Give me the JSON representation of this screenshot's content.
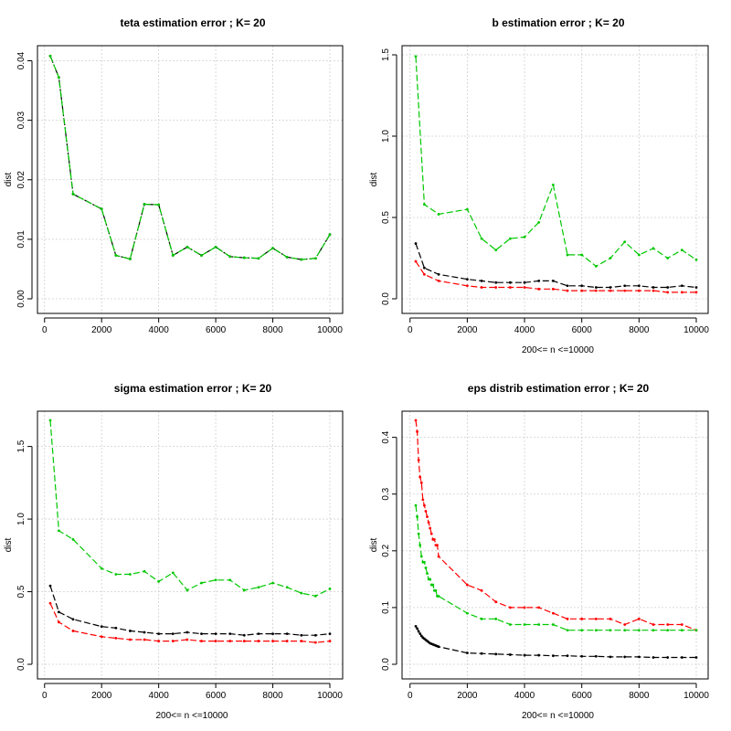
{
  "colors": {
    "black": "#000000",
    "red": "#ff0000",
    "green": "#00c800",
    "grid": "#cfcfcf"
  },
  "chart_data": [
    {
      "type": "line",
      "title": "teta estimation error ; K= 20",
      "xlabel": "",
      "ylabel": "dist",
      "xlim": [
        200,
        10000
      ],
      "ylim": [
        0,
        0.041
      ],
      "xticks": [
        0,
        2000,
        4000,
        6000,
        8000,
        10000
      ],
      "yticks": [
        0.0,
        0.01,
        0.02,
        0.03,
        0.04
      ],
      "ytick_labels": [
        "0.00",
        "0.01",
        "0.02",
        "0.03",
        "0.04"
      ],
      "series": [
        {
          "name": "black",
          "color": "#000000",
          "x": [
            200,
            500,
            1000,
            2000,
            2500,
            3000,
            3500,
            4000,
            4500,
            5000,
            5500,
            6000,
            6500,
            7000,
            7500,
            8000,
            8500,
            9000,
            9500,
            10000
          ],
          "y": [
            0.0408,
            0.0372,
            0.0176,
            0.0151,
            0.0073,
            0.0067,
            0.0159,
            0.0158,
            0.0073,
            0.0087,
            0.0073,
            0.0087,
            0.0071,
            0.0069,
            0.0068,
            0.0085,
            0.007,
            0.0066,
            0.0068,
            0.0108
          ]
        },
        {
          "name": "green",
          "color": "#00c800",
          "x": [
            200,
            500,
            1000,
            2000,
            2500,
            3000,
            3500,
            4000,
            4500,
            5000,
            5500,
            6000,
            6500,
            7000,
            7500,
            8000,
            8500,
            9000,
            9500,
            10000
          ],
          "y": [
            0.0408,
            0.0372,
            0.0176,
            0.0151,
            0.0073,
            0.0067,
            0.0159,
            0.0158,
            0.0073,
            0.0087,
            0.0073,
            0.0087,
            0.0071,
            0.0069,
            0.0068,
            0.0085,
            0.007,
            0.0066,
            0.0068,
            0.0108
          ]
        }
      ]
    },
    {
      "type": "line",
      "title": "b  estimation error ; K= 20",
      "xlabel": "200<= n <=10000",
      "ylabel": "dist",
      "xlim": [
        200,
        10000
      ],
      "ylim": [
        0,
        1.5
      ],
      "xticks": [
        0,
        2000,
        4000,
        6000,
        8000,
        10000
      ],
      "yticks": [
        0.0,
        0.5,
        1.0,
        1.5
      ],
      "ytick_labels": [
        "0.0",
        "0.5",
        "1.0",
        "1.5"
      ],
      "series": [
        {
          "name": "green",
          "color": "#00c800",
          "x": [
            200,
            500,
            1000,
            2000,
            2500,
            3000,
            3500,
            4000,
            4500,
            5000,
            5500,
            6000,
            6500,
            7000,
            7500,
            8000,
            8500,
            9000,
            9500,
            10000
          ],
          "y": [
            1.49,
            0.58,
            0.52,
            0.55,
            0.37,
            0.3,
            0.37,
            0.38,
            0.47,
            0.7,
            0.27,
            0.27,
            0.2,
            0.25,
            0.35,
            0.27,
            0.31,
            0.25,
            0.3,
            0.24
          ]
        },
        {
          "name": "black",
          "color": "#000000",
          "x": [
            200,
            500,
            1000,
            2000,
            2500,
            3000,
            3500,
            4000,
            4500,
            5000,
            5500,
            6000,
            6500,
            7000,
            7500,
            8000,
            8500,
            9000,
            9500,
            10000
          ],
          "y": [
            0.34,
            0.19,
            0.15,
            0.12,
            0.11,
            0.1,
            0.1,
            0.1,
            0.11,
            0.11,
            0.08,
            0.08,
            0.07,
            0.07,
            0.08,
            0.08,
            0.07,
            0.07,
            0.08,
            0.07
          ]
        },
        {
          "name": "red",
          "color": "#ff0000",
          "x": [
            200,
            500,
            1000,
            2000,
            2500,
            3000,
            3500,
            4000,
            4500,
            5000,
            5500,
            6000,
            6500,
            7000,
            7500,
            8000,
            8500,
            9000,
            9500,
            10000
          ],
          "y": [
            0.23,
            0.15,
            0.11,
            0.08,
            0.07,
            0.07,
            0.07,
            0.07,
            0.06,
            0.06,
            0.05,
            0.05,
            0.05,
            0.05,
            0.05,
            0.05,
            0.05,
            0.04,
            0.04,
            0.04
          ]
        }
      ]
    },
    {
      "type": "line",
      "title": "sigma estimation error ; K= 20",
      "xlabel": "200<= n <=10000",
      "ylabel": "dist",
      "xlim": [
        200,
        10000
      ],
      "ylim": [
        0,
        1.68
      ],
      "xticks": [
        0,
        2000,
        4000,
        6000,
        8000,
        10000
      ],
      "yticks": [
        0.0,
        0.5,
        1.0,
        1.5
      ],
      "ytick_labels": [
        "0.0",
        "0.5",
        "1.0",
        "1.5"
      ],
      "series": [
        {
          "name": "green",
          "color": "#00c800",
          "x": [
            200,
            500,
            1000,
            2000,
            2500,
            3000,
            3500,
            4000,
            4500,
            5000,
            5500,
            6000,
            6500,
            7000,
            7500,
            8000,
            8500,
            9000,
            9500,
            10000
          ],
          "y": [
            1.68,
            0.92,
            0.86,
            0.66,
            0.62,
            0.62,
            0.64,
            0.57,
            0.63,
            0.51,
            0.56,
            0.58,
            0.58,
            0.51,
            0.53,
            0.56,
            0.53,
            0.49,
            0.47,
            0.52
          ]
        },
        {
          "name": "black",
          "color": "#000000",
          "x": [
            200,
            500,
            1000,
            2000,
            2500,
            3000,
            3500,
            4000,
            4500,
            5000,
            5500,
            6000,
            6500,
            7000,
            7500,
            8000,
            8500,
            9000,
            9500,
            10000
          ],
          "y": [
            0.54,
            0.36,
            0.31,
            0.26,
            0.25,
            0.23,
            0.22,
            0.21,
            0.21,
            0.22,
            0.21,
            0.21,
            0.21,
            0.2,
            0.21,
            0.21,
            0.21,
            0.2,
            0.2,
            0.21
          ]
        },
        {
          "name": "red",
          "color": "#ff0000",
          "x": [
            200,
            500,
            1000,
            2000,
            2500,
            3000,
            3500,
            4000,
            4500,
            5000,
            5500,
            6000,
            6500,
            7000,
            7500,
            8000,
            8500,
            9000,
            9500,
            10000
          ],
          "y": [
            0.42,
            0.29,
            0.23,
            0.19,
            0.18,
            0.17,
            0.17,
            0.16,
            0.16,
            0.17,
            0.16,
            0.16,
            0.16,
            0.16,
            0.16,
            0.16,
            0.16,
            0.16,
            0.15,
            0.16
          ]
        }
      ]
    },
    {
      "type": "line",
      "title": "eps distrib estimation error ; K= 20",
      "xlabel": "200<= n <=10000",
      "ylabel": "dist",
      "xlim": [
        200,
        10000
      ],
      "ylim": [
        0,
        0.43
      ],
      "xticks": [
        0,
        2000,
        4000,
        6000,
        8000,
        10000
      ],
      "yticks": [
        0.0,
        0.1,
        0.2,
        0.3,
        0.4
      ],
      "ytick_labels": [
        "0.0",
        "0.1",
        "0.2",
        "0.3",
        "0.4"
      ],
      "series": [
        {
          "name": "red",
          "color": "#ff0000",
          "x": [
            200,
            250,
            300,
            350,
            400,
            450,
            500,
            550,
            600,
            650,
            700,
            750,
            800,
            850,
            900,
            950,
            1000,
            2000,
            2500,
            3000,
            3500,
            4000,
            4500,
            5000,
            5500,
            6000,
            6500,
            7000,
            7500,
            8000,
            8500,
            9000,
            9500,
            10000
          ],
          "y": [
            0.43,
            0.41,
            0.36,
            0.33,
            0.32,
            0.29,
            0.28,
            0.27,
            0.26,
            0.25,
            0.24,
            0.23,
            0.22,
            0.22,
            0.21,
            0.21,
            0.19,
            0.14,
            0.13,
            0.11,
            0.1,
            0.1,
            0.1,
            0.09,
            0.08,
            0.08,
            0.08,
            0.08,
            0.07,
            0.08,
            0.07,
            0.07,
            0.07,
            0.06
          ]
        },
        {
          "name": "green",
          "color": "#00c800",
          "x": [
            200,
            250,
            300,
            350,
            400,
            450,
            500,
            550,
            600,
            650,
            700,
            750,
            800,
            850,
            900,
            950,
            1000,
            2000,
            2500,
            3000,
            3500,
            4000,
            4500,
            5000,
            5500,
            6000,
            6500,
            7000,
            7500,
            8000,
            8500,
            9000,
            9500,
            10000
          ],
          "y": [
            0.28,
            0.26,
            0.23,
            0.21,
            0.19,
            0.18,
            0.18,
            0.17,
            0.16,
            0.15,
            0.15,
            0.14,
            0.14,
            0.13,
            0.13,
            0.12,
            0.12,
            0.09,
            0.08,
            0.08,
            0.07,
            0.07,
            0.07,
            0.07,
            0.06,
            0.06,
            0.06,
            0.06,
            0.06,
            0.06,
            0.06,
            0.06,
            0.06,
            0.06
          ]
        },
        {
          "name": "black",
          "color": "#000000",
          "x": [
            200,
            250,
            300,
            350,
            400,
            450,
            500,
            550,
            600,
            650,
            700,
            750,
            800,
            850,
            900,
            950,
            1000,
            2000,
            2500,
            3000,
            3500,
            4000,
            4500,
            5000,
            5500,
            6000,
            6500,
            7000,
            7500,
            8000,
            8500,
            9000,
            9500,
            10000
          ],
          "y": [
            0.067,
            0.063,
            0.058,
            0.054,
            0.05,
            0.047,
            0.045,
            0.043,
            0.041,
            0.039,
            0.037,
            0.036,
            0.035,
            0.034,
            0.033,
            0.032,
            0.031,
            0.02,
            0.019,
            0.018,
            0.017,
            0.016,
            0.016,
            0.015,
            0.015,
            0.014,
            0.014,
            0.013,
            0.013,
            0.013,
            0.012,
            0.012,
            0.012,
            0.012
          ]
        }
      ]
    }
  ]
}
